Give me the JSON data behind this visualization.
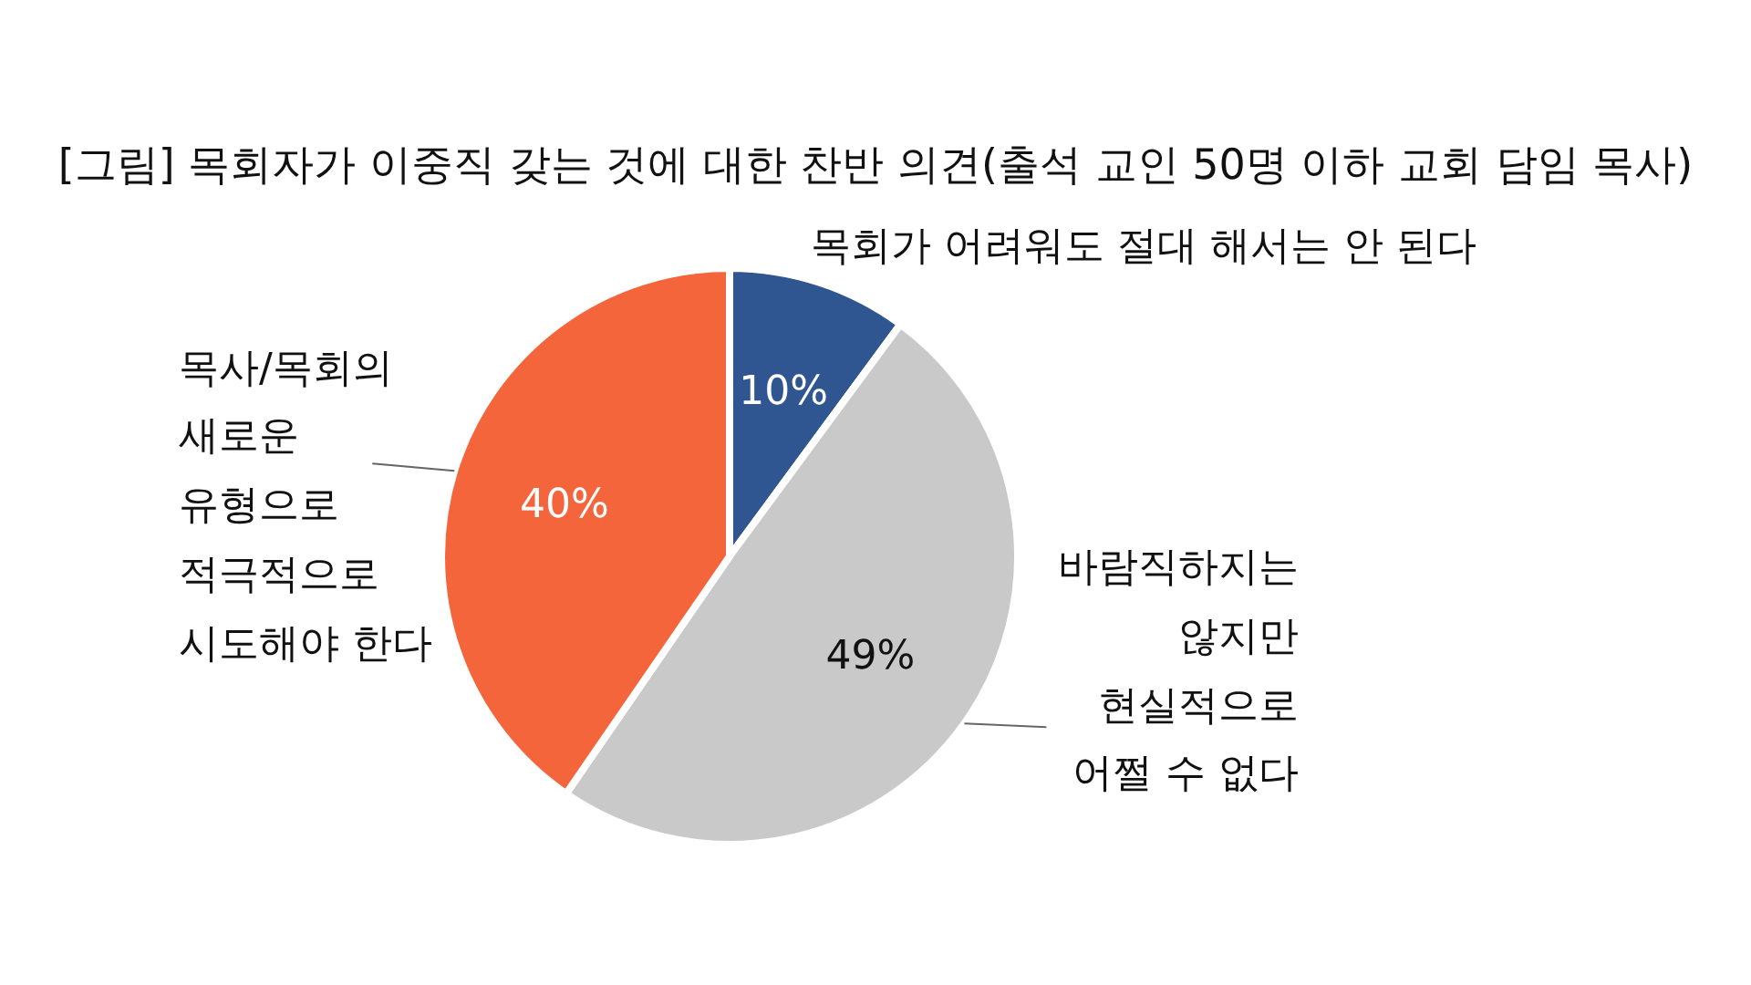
{
  "chart_data": {
    "type": "pie",
    "title": "[그림] 목회자가 이중직 갖는 것에 대한 찬반 의견(출석 교인 50명 이하 교회 담임 목사)",
    "categories": [
      "목회가 어려워도 절대 해서는 안 된다",
      "바람직하지는 않지만 현실적으로 어쩔 수 없다",
      "목사/목회의 새로운 유형으로 적극적으로 시도해야 한다"
    ],
    "values": [
      10,
      49,
      40
    ],
    "value_labels": [
      "10%",
      "49%",
      "40%"
    ],
    "colors": [
      "#2f5690",
      "#c9c9c9",
      "#f5653b"
    ]
  }
}
